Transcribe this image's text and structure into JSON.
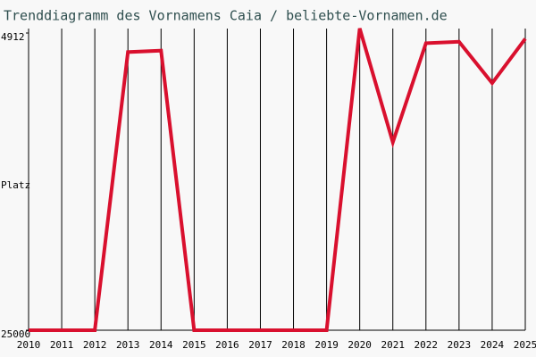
{
  "chart_data": {
    "type": "line",
    "title": "Trenddiagramm des Vornamens Caia / beliebte-Vornamen.de",
    "y_label": "Platz",
    "categories": [
      "2010",
      "2011",
      "2012",
      "2013",
      "2014",
      "2015",
      "2016",
      "2017",
      "2018",
      "2019",
      "2020",
      "2021",
      "2022",
      "2023",
      "2024",
      "2025"
    ],
    "series": [
      {
        "color": "#d9102e",
        "values": [
          25000,
          25000,
          25000,
          6200,
          6100,
          25000,
          25000,
          25000,
          25000,
          25000,
          4600,
          12300,
          5600,
          5500,
          8300,
          5300
        ]
      }
    ],
    "ylim": [
      25000,
      4912
    ],
    "yticks": [
      4912,
      25000
    ],
    "grid": true
  }
}
